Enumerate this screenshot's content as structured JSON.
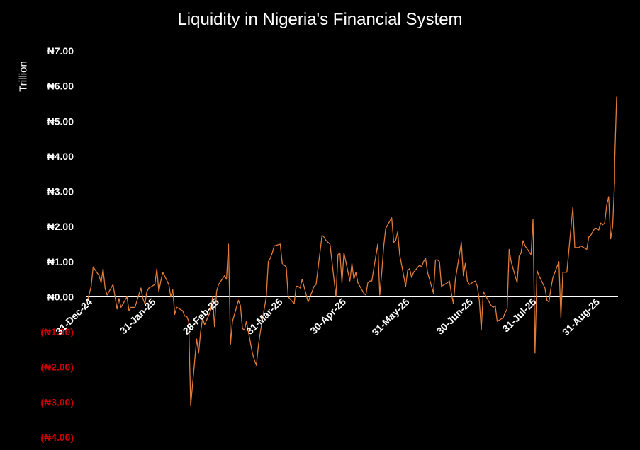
{
  "colors": {
    "background": "#000000",
    "line": "#e07b39",
    "axis": "#ffffff",
    "positive_tick": "#ffffff",
    "negative_tick": "#cc0000"
  },
  "chart_data": {
    "type": "line",
    "title": "Liquidity in Nigeria's Financial System",
    "ylabel": "Trillion",
    "xlabel": "",
    "ylim": [
      -4,
      7
    ],
    "grid": false,
    "legend": "none",
    "y_ticks": [
      {
        "value": 7,
        "label": "₦7.00"
      },
      {
        "value": 6,
        "label": "₦6.00"
      },
      {
        "value": 5,
        "label": "₦5.00"
      },
      {
        "value": 4,
        "label": "₦4.00"
      },
      {
        "value": 3,
        "label": "₦3.00"
      },
      {
        "value": 2,
        "label": "₦2.00"
      },
      {
        "value": 1,
        "label": "₦1.00"
      },
      {
        "value": 0,
        "label": "₦0.00"
      },
      {
        "value": -1,
        "label": "(₦1.00)"
      },
      {
        "value": -2,
        "label": "(₦2.00)"
      },
      {
        "value": -3,
        "label": "(₦3.00)"
      },
      {
        "value": -4,
        "label": "(₦4.00)"
      }
    ],
    "x_ticks": [
      "31-Dec-24",
      "31-Jan-25",
      "28-Feb-25",
      "31-Mar-25",
      "30-Apr-25",
      "31-May-25",
      "30-Jun-25",
      "31-Jul-25",
      "31-Aug-25"
    ],
    "x_range": [
      "2024-12-31",
      "2025-09-23"
    ],
    "series": [
      {
        "points": [
          [
            "2024-12-31",
            -0.15
          ],
          [
            "2025-01-02",
            0.3
          ],
          [
            "2025-01-03",
            0.85
          ],
          [
            "2025-01-06",
            0.6
          ],
          [
            "2025-01-07",
            0.4
          ],
          [
            "2025-01-08",
            0.8
          ],
          [
            "2025-01-09",
            0.25
          ],
          [
            "2025-01-10",
            0.05
          ],
          [
            "2025-01-13",
            0.35
          ],
          [
            "2025-01-14",
            0.0
          ],
          [
            "2025-01-15",
            -0.35
          ],
          [
            "2025-01-16",
            -0.05
          ],
          [
            "2025-01-17",
            -0.3
          ],
          [
            "2025-01-20",
            0.0
          ],
          [
            "2025-01-21",
            -0.4
          ],
          [
            "2025-01-22",
            -0.3
          ],
          [
            "2025-01-24",
            -0.3
          ],
          [
            "2025-01-27",
            0.25
          ],
          [
            "2025-01-28",
            -0.05
          ],
          [
            "2025-01-29",
            -0.2
          ],
          [
            "2025-01-30",
            0.15
          ],
          [
            "2025-01-31",
            0.25
          ],
          [
            "2025-02-03",
            0.35
          ],
          [
            "2025-02-04",
            0.8
          ],
          [
            "2025-02-05",
            0.15
          ],
          [
            "2025-02-06",
            0.45
          ],
          [
            "2025-02-07",
            0.7
          ],
          [
            "2025-02-10",
            0.35
          ],
          [
            "2025-02-11",
            0.0
          ],
          [
            "2025-02-12",
            0.2
          ],
          [
            "2025-02-13",
            -0.5
          ],
          [
            "2025-02-14",
            -0.3
          ],
          [
            "2025-02-17",
            -0.4
          ],
          [
            "2025-02-18",
            -0.55
          ],
          [
            "2025-02-19",
            -0.55
          ],
          [
            "2025-02-20",
            -0.7
          ],
          [
            "2025-02-21",
            -3.1
          ],
          [
            "2025-02-24",
            -1.2
          ],
          [
            "2025-02-25",
            -1.6
          ],
          [
            "2025-02-26",
            -1.0
          ],
          [
            "2025-02-27",
            -0.6
          ],
          [
            "2025-02-28",
            -0.8
          ],
          [
            "2025-03-03",
            -0.4
          ],
          [
            "2025-03-04",
            0.0
          ],
          [
            "2025-03-05",
            -0.85
          ],
          [
            "2025-03-06",
            0.15
          ],
          [
            "2025-03-07",
            0.35
          ],
          [
            "2025-03-10",
            0.6
          ],
          [
            "2025-03-11",
            0.5
          ],
          [
            "2025-03-12",
            1.5
          ],
          [
            "2025-03-13",
            -1.35
          ],
          [
            "2025-03-14",
            -0.7
          ],
          [
            "2025-03-17",
            -0.1
          ],
          [
            "2025-03-18",
            -0.25
          ],
          [
            "2025-03-19",
            -0.9
          ],
          [
            "2025-03-20",
            -0.95
          ],
          [
            "2025-03-21",
            -0.7
          ],
          [
            "2025-03-24",
            -1.6
          ],
          [
            "2025-03-25",
            -1.8
          ],
          [
            "2025-03-26",
            -1.95
          ],
          [
            "2025-03-27",
            -1.4
          ],
          [
            "2025-03-28",
            -1.0
          ],
          [
            "2025-03-31",
            0.0
          ],
          [
            "2025-04-01",
            1.0
          ],
          [
            "2025-04-02",
            1.1
          ],
          [
            "2025-04-03",
            1.25
          ],
          [
            "2025-04-04",
            1.45
          ],
          [
            "2025-04-07",
            1.5
          ],
          [
            "2025-04-08",
            0.95
          ],
          [
            "2025-04-09",
            0.9
          ],
          [
            "2025-04-10",
            0.85
          ],
          [
            "2025-04-11",
            0.0
          ],
          [
            "2025-04-14",
            -0.2
          ],
          [
            "2025-04-15",
            0.3
          ],
          [
            "2025-04-16",
            0.3
          ],
          [
            "2025-04-17",
            0.25
          ],
          [
            "2025-04-18",
            0.5
          ],
          [
            "2025-04-21",
            -0.15
          ],
          [
            "2025-04-22",
            0.0
          ],
          [
            "2025-04-23",
            0.15
          ],
          [
            "2025-04-24",
            0.3
          ],
          [
            "2025-04-25",
            0.35
          ],
          [
            "2025-04-28",
            1.75
          ],
          [
            "2025-04-29",
            1.7
          ],
          [
            "2025-04-30",
            1.6
          ],
          [
            "2025-05-01",
            1.55
          ],
          [
            "2025-05-02",
            1.5
          ],
          [
            "2025-05-05",
            0.0
          ],
          [
            "2025-05-06",
            1.2
          ],
          [
            "2025-05-07",
            1.25
          ],
          [
            "2025-05-08",
            0.4
          ],
          [
            "2025-05-09",
            1.25
          ],
          [
            "2025-05-12",
            0.45
          ],
          [
            "2025-05-13",
            0.95
          ],
          [
            "2025-05-14",
            0.5
          ],
          [
            "2025-05-15",
            0.7
          ],
          [
            "2025-05-16",
            0.4
          ],
          [
            "2025-05-19",
            0.1
          ],
          [
            "2025-05-20",
            0.05
          ],
          [
            "2025-05-21",
            0.4
          ],
          [
            "2025-05-22",
            0.45
          ],
          [
            "2025-05-23",
            0.45
          ],
          [
            "2025-05-26",
            1.5
          ],
          [
            "2025-05-27",
            0.05
          ],
          [
            "2025-05-28",
            0.7
          ],
          [
            "2025-05-29",
            1.45
          ],
          [
            "2025-05-30",
            1.95
          ],
          [
            "2025-06-02",
            2.25
          ],
          [
            "2025-06-03",
            1.55
          ],
          [
            "2025-06-04",
            1.6
          ],
          [
            "2025-06-05",
            1.85
          ],
          [
            "2025-06-06",
            1.2
          ],
          [
            "2025-06-09",
            0.3
          ],
          [
            "2025-06-10",
            0.75
          ],
          [
            "2025-06-11",
            0.8
          ],
          [
            "2025-06-12",
            0.55
          ],
          [
            "2025-06-13",
            0.7
          ],
          [
            "2025-06-16",
            0.9
          ],
          [
            "2025-06-17",
            0.85
          ],
          [
            "2025-06-18",
            1.0
          ],
          [
            "2025-06-19",
            1.1
          ],
          [
            "2025-06-20",
            0.7
          ],
          [
            "2025-06-23",
            0.1
          ],
          [
            "2025-06-24",
            1.05
          ],
          [
            "2025-06-25",
            1.05
          ],
          [
            "2025-06-26",
            1.0
          ],
          [
            "2025-06-27",
            0.3
          ],
          [
            "2025-06-30",
            0.4
          ],
          [
            "2025-07-01",
            0.45
          ],
          [
            "2025-07-02",
            0.1
          ],
          [
            "2025-07-03",
            -0.2
          ],
          [
            "2025-07-04",
            0.5
          ],
          [
            "2025-07-07",
            1.55
          ],
          [
            "2025-07-08",
            0.6
          ],
          [
            "2025-07-09",
            0.95
          ],
          [
            "2025-07-10",
            0.45
          ],
          [
            "2025-07-11",
            0.35
          ],
          [
            "2025-07-14",
            0.45
          ],
          [
            "2025-07-15",
            0.3
          ],
          [
            "2025-07-16",
            -0.1
          ],
          [
            "2025-07-17",
            -0.95
          ],
          [
            "2025-07-18",
            0.15
          ],
          [
            "2025-07-21",
            -0.15
          ],
          [
            "2025-07-22",
            -0.25
          ],
          [
            "2025-07-23",
            -0.3
          ],
          [
            "2025-07-24",
            -0.25
          ],
          [
            "2025-07-25",
            -0.7
          ],
          [
            "2025-07-28",
            -0.6
          ],
          [
            "2025-07-29",
            -0.45
          ],
          [
            "2025-07-30",
            -0.35
          ],
          [
            "2025-07-31",
            1.35
          ],
          [
            "2025-08-01",
            1.0
          ],
          [
            "2025-08-04",
            0.4
          ],
          [
            "2025-08-05",
            1.15
          ],
          [
            "2025-08-06",
            1.25
          ],
          [
            "2025-08-07",
            1.6
          ],
          [
            "2025-08-08",
            1.45
          ],
          [
            "2025-08-11",
            1.2
          ],
          [
            "2025-08-12",
            2.2
          ],
          [
            "2025-08-13",
            -1.6
          ],
          [
            "2025-08-14",
            0.75
          ],
          [
            "2025-08-15",
            0.6
          ],
          [
            "2025-08-18",
            0.25
          ],
          [
            "2025-08-19",
            -0.1
          ],
          [
            "2025-08-20",
            -0.15
          ],
          [
            "2025-08-21",
            0.25
          ],
          [
            "2025-08-22",
            0.55
          ],
          [
            "2025-08-25",
            1.0
          ],
          [
            "2025-08-26",
            -0.6
          ],
          [
            "2025-08-27",
            0.7
          ],
          [
            "2025-08-28",
            0.7
          ],
          [
            "2025-08-29",
            0.7
          ],
          [
            "2025-09-01",
            2.55
          ],
          [
            "2025-09-02",
            1.4
          ],
          [
            "2025-09-03",
            1.4
          ],
          [
            "2025-09-04",
            1.4
          ],
          [
            "2025-09-05",
            1.45
          ],
          [
            "2025-09-08",
            1.35
          ],
          [
            "2025-09-09",
            1.7
          ],
          [
            "2025-09-10",
            1.75
          ],
          [
            "2025-09-11",
            1.85
          ],
          [
            "2025-09-12",
            1.95
          ],
          [
            "2025-09-13",
            1.95
          ],
          [
            "2025-09-14",
            1.9
          ],
          [
            "2025-09-15",
            2.1
          ],
          [
            "2025-09-16",
            2.05
          ],
          [
            "2025-09-17",
            2.1
          ],
          [
            "2025-09-18",
            2.6
          ],
          [
            "2025-09-19",
            2.85
          ],
          [
            "2025-09-20",
            1.65
          ],
          [
            "2025-09-21",
            2.0
          ],
          [
            "2025-09-22",
            3.3
          ],
          [
            "2025-09-22",
            3.8
          ],
          [
            "2025-09-23",
            5.7
          ]
        ]
      }
    ]
  }
}
